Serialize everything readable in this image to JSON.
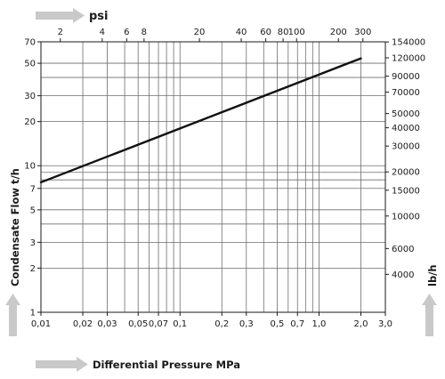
{
  "chart_data": {
    "type": "line",
    "scale": {
      "x": "log",
      "y": "log"
    },
    "xlim": [
      0.01,
      3.0
    ],
    "ylim": [
      1,
      70
    ],
    "xlabel": "Differential Pressure MPa",
    "ylabel": "Condensate Flow t/h",
    "top_axis_label": "psi",
    "right_axis_label": "lb/h",
    "x_ticks": [
      {
        "v": 0.01,
        "t": "0,01"
      },
      {
        "v": 0.02,
        "t": "0,02"
      },
      {
        "v": 0.03,
        "t": "0,03"
      },
      {
        "v": 0.05,
        "t": "0,05"
      },
      {
        "v": 0.07,
        "t": "0,07"
      },
      {
        "v": 0.1,
        "t": "0,1"
      },
      {
        "v": 0.2,
        "t": "0,2"
      },
      {
        "v": 0.3,
        "t": "0,3"
      },
      {
        "v": 0.5,
        "t": "0,5"
      },
      {
        "v": 0.7,
        "t": "0,7"
      },
      {
        "v": 1.0,
        "t": "1,0"
      },
      {
        "v": 2.0,
        "t": "2,0"
      },
      {
        "v": 3.0,
        "t": "3,0"
      }
    ],
    "x_minor_grid": [
      0.04,
      0.06,
      0.08,
      0.09,
      0.4,
      0.6,
      0.8,
      0.9
    ],
    "y_ticks": [
      {
        "v": 1,
        "t": "1"
      },
      {
        "v": 2,
        "t": "2"
      },
      {
        "v": 3,
        "t": "3"
      },
      {
        "v": 5,
        "t": "5"
      },
      {
        "v": 7,
        "t": "7"
      },
      {
        "v": 10,
        "t": "10"
      },
      {
        "v": 20,
        "t": "20"
      },
      {
        "v": 30,
        "t": "30"
      },
      {
        "v": 50,
        "t": "50"
      },
      {
        "v": 70,
        "t": "70"
      }
    ],
    "y_minor_grid": [
      4,
      8,
      9,
      40
    ],
    "top_ticks": [
      {
        "v": 2,
        "t": "2"
      },
      {
        "v": 4,
        "t": "4"
      },
      {
        "v": 6,
        "t": "6"
      },
      {
        "v": 8,
        "t": "8"
      },
      {
        "v": 20,
        "t": "20"
      },
      {
        "v": 40,
        "t": "40"
      },
      {
        "v": 60,
        "t": "60"
      },
      {
        "v": 80,
        "t": "80"
      },
      {
        "v": 100,
        "t": "100"
      },
      {
        "v": 200,
        "t": "200"
      },
      {
        "v": 300,
        "t": "300"
      }
    ],
    "right_ticks": [
      {
        "v": 4000,
        "t": "4000"
      },
      {
        "v": 6000,
        "t": "6000"
      },
      {
        "v": 10000,
        "t": "10000"
      },
      {
        "v": 15000,
        "t": "15000"
      },
      {
        "v": 20000,
        "t": "20000"
      },
      {
        "v": 30000,
        "t": "30000"
      },
      {
        "v": 40000,
        "t": "40000"
      },
      {
        "v": 50000,
        "t": "50000"
      },
      {
        "v": 70000,
        "t": "70000"
      },
      {
        "v": 90000,
        "t": "90000"
      },
      {
        "v": 120000,
        "t": "120000"
      },
      {
        "v": 154000,
        "t": "154000"
      }
    ],
    "series": [
      {
        "x": [
          0.01,
          2.0
        ],
        "y": [
          7.7,
          54
        ]
      }
    ]
  }
}
